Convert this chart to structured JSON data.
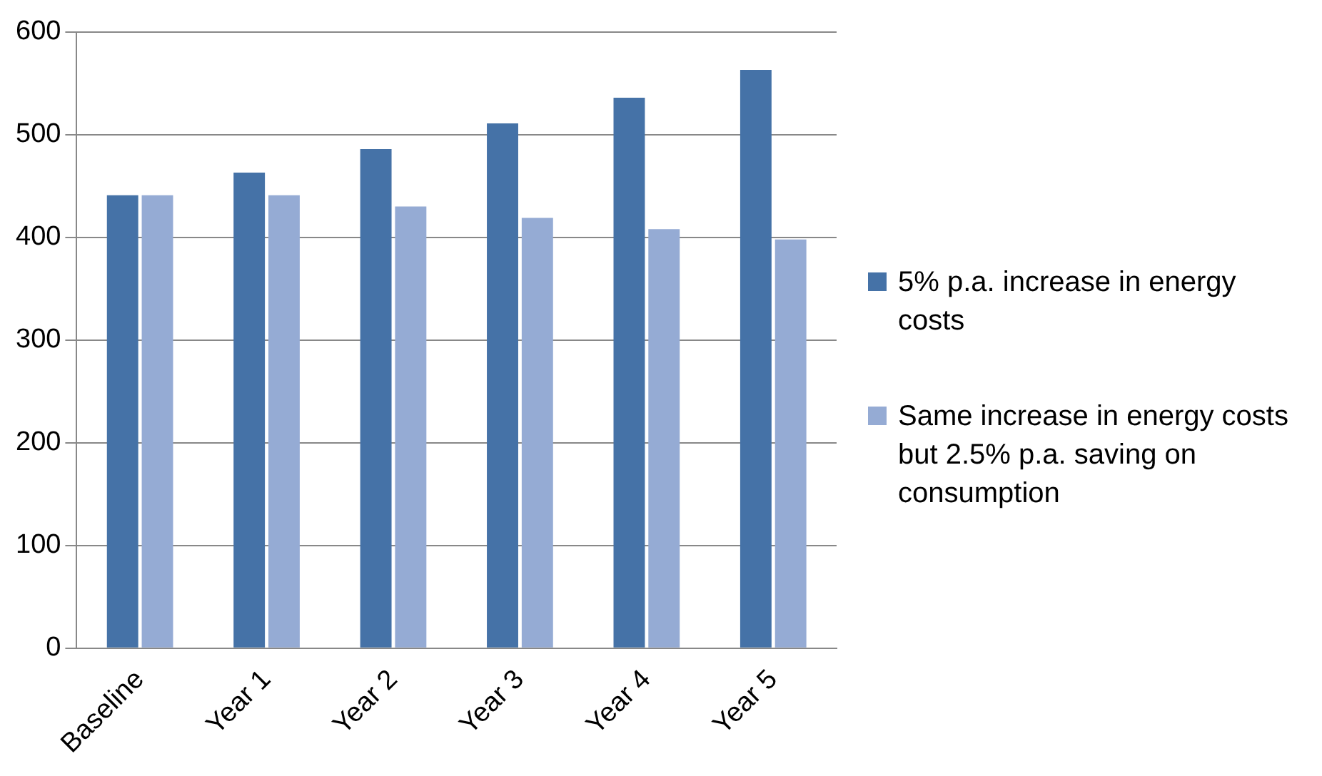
{
  "chart_data": {
    "type": "bar",
    "categories": [
      "Baseline",
      "Year 1",
      "Year 2",
      "Year 3",
      "Year 4",
      "Year 5"
    ],
    "series": [
      {
        "name": "5% p.a. increase in energy costs",
        "color": "#4572a7",
        "values": [
          441,
          463,
          486,
          511,
          536,
          563
        ]
      },
      {
        "name": "Same increase in energy costs but 2.5% p.a. saving on consumption",
        "color": "#95abd4",
        "values": [
          441,
          441,
          430,
          419,
          408,
          398
        ]
      }
    ],
    "ylim": [
      0,
      600
    ],
    "yticks": [
      0,
      100,
      200,
      300,
      400,
      500,
      600
    ],
    "grid": "y",
    "legend": "right"
  }
}
